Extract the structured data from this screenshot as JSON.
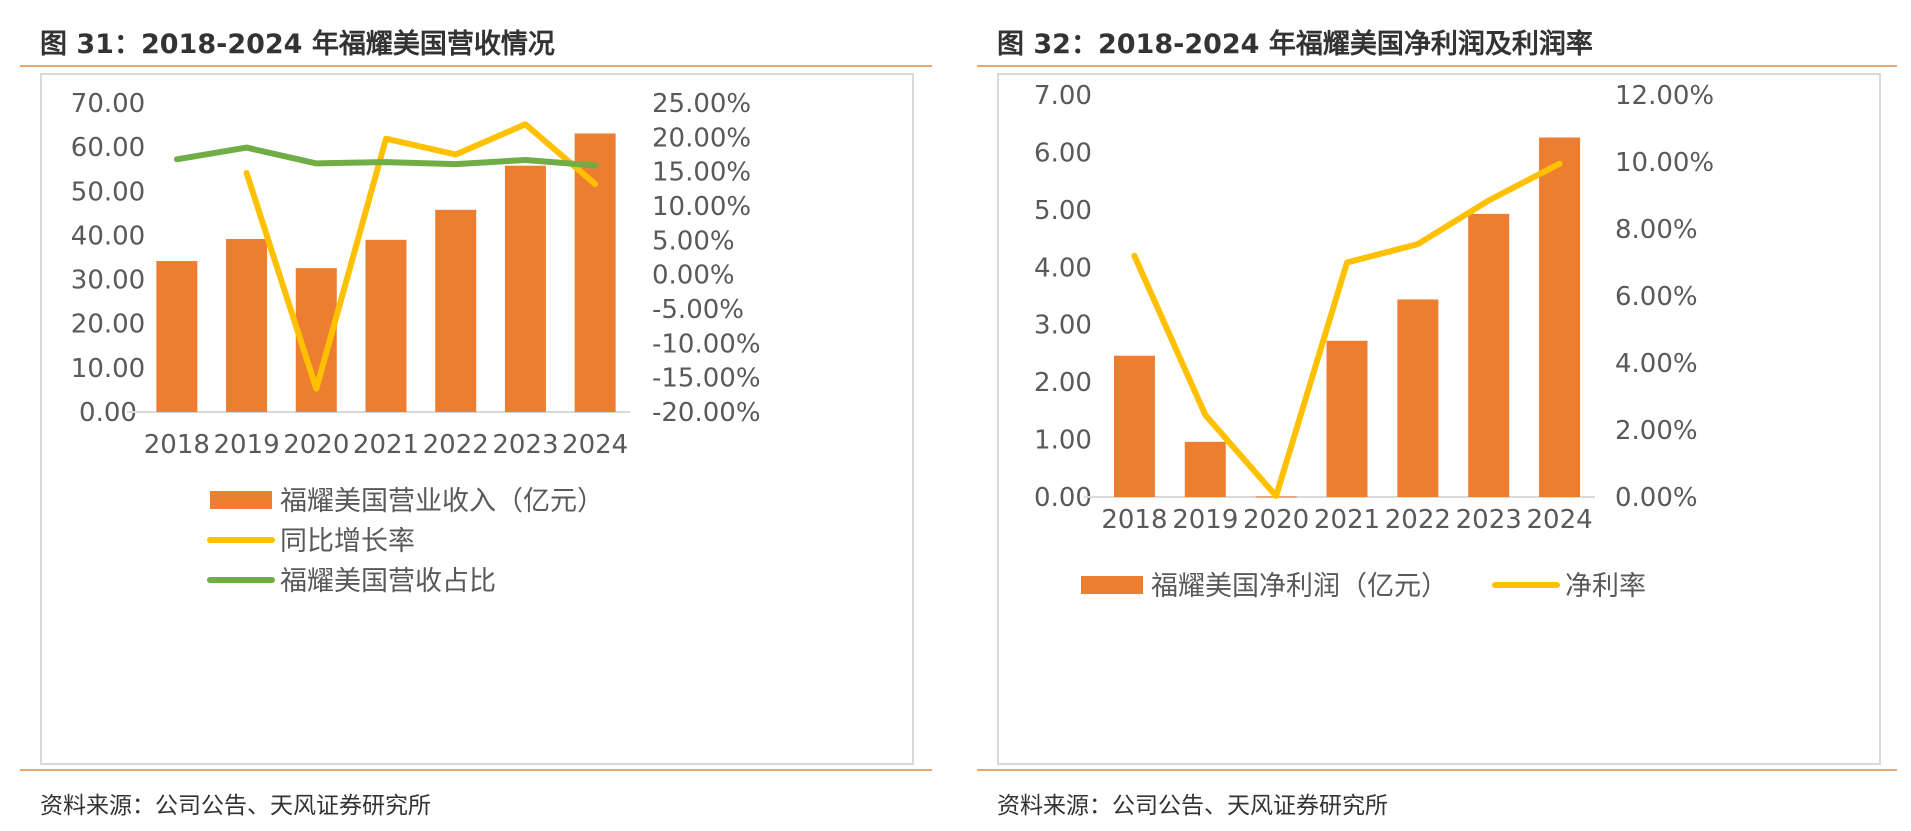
{
  "left_panel": {
    "title": "图 31：2018-2024 年福耀美国营收情况",
    "source": "资料来源：公司公告、天风证券研究所"
  },
  "right_panel": {
    "title": "图 32：2018-2024 年福耀美国净利润及利润率",
    "source": "资料来源：公司公告、天风证券研究所"
  },
  "chart_data": [
    {
      "type": "bar",
      "categories": [
        "2018",
        "2019",
        "2020",
        "2021",
        "2022",
        "2023",
        "2024"
      ],
      "y_ticks": [
        "70.00",
        "60.00",
        "50.00",
        "40.00",
        "30.00",
        "20.00",
        "10.00",
        "0.00"
      ],
      "y2_ticks": [
        "25.00%",
        "20.00%",
        "15.00%",
        "10.00%",
        "5.00%",
        "0.00%",
        "-5.00%",
        "-10.00%",
        "-15.00%",
        "-20.00%"
      ],
      "ylim": [
        0,
        70
      ],
      "y2lim": [
        -20,
        25
      ],
      "series": [
        {
          "name": "福耀美国营业收入（亿元）",
          "kind": "bar",
          "axis": "left",
          "color": "#ED7D31",
          "values": [
            34.2,
            39.2,
            32.6,
            39.0,
            45.8,
            55.8,
            63.1
          ]
        },
        {
          "name": "同比增长率",
          "kind": "line",
          "axis": "right",
          "color": "#FFC000",
          "values": [
            null,
            14.8,
            -16.6,
            19.8,
            17.5,
            21.9,
            13.2
          ]
        },
        {
          "name": "福耀美国营收占比",
          "kind": "line",
          "axis": "right",
          "color": "#70AD47",
          "values": [
            16.8,
            18.5,
            16.2,
            16.4,
            16.1,
            16.7,
            15.9
          ]
        }
      ]
    },
    {
      "type": "bar",
      "categories": [
        "2018",
        "2019",
        "2020",
        "2021",
        "2022",
        "2023",
        "2024"
      ],
      "y_ticks": [
        "7.00",
        "6.00",
        "5.00",
        "4.00",
        "3.00",
        "2.00",
        "1.00",
        "0.00"
      ],
      "y2_ticks": [
        "12.00%",
        "10.00%",
        "8.00%",
        "6.00%",
        "4.00%",
        "2.00%",
        "0.00%"
      ],
      "ylim": [
        0,
        7
      ],
      "y2lim": [
        0,
        12
      ],
      "series": [
        {
          "name": "福耀美国净利润（亿元）",
          "kind": "bar",
          "axis": "left",
          "color": "#ED7D31",
          "values": [
            2.46,
            0.96,
            0.01,
            2.72,
            3.44,
            4.93,
            6.26
          ]
        },
        {
          "name": "净利率",
          "kind": "line",
          "axis": "right",
          "color": "#FFC000",
          "values": [
            7.2,
            2.45,
            0.03,
            7.0,
            7.55,
            8.85,
            9.95
          ]
        }
      ]
    }
  ]
}
